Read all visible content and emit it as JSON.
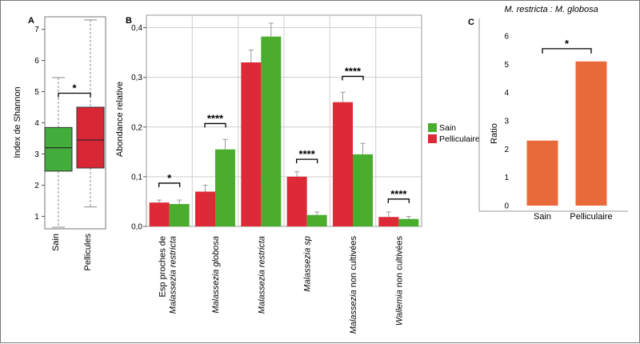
{
  "colors": {
    "sain_box": "#42ad3a",
    "pellicules_box": "#d92635",
    "sain_bar": "#4aad2e",
    "pelliculaire_bar": "#dd2a36",
    "ratio_bar": "#e8693a",
    "grid": "#cfcfcf",
    "whisker": "#888888"
  },
  "chart_data": [
    {
      "panel": "A",
      "type": "box",
      "ylabel": "Index de Shannon",
      "ylim": [
        0.6,
        7.4
      ],
      "yticks": [
        "1",
        "2",
        "3",
        "4",
        "5",
        "6",
        "7"
      ],
      "categories": [
        "Sain",
        "Pellicules"
      ],
      "boxes": [
        {
          "name": "Sain",
          "min": 0.65,
          "q1": 2.45,
          "median": 3.2,
          "q3": 3.85,
          "max": 5.45
        },
        {
          "name": "Pellicules",
          "min": 1.3,
          "q1": 2.55,
          "median": 3.45,
          "q3": 4.5,
          "max": 7.3
        }
      ],
      "significance": [
        {
          "between": [
            "Sain",
            "Pellicules"
          ],
          "label": "*",
          "y": 4.95
        }
      ]
    },
    {
      "panel": "B",
      "type": "bar",
      "ylabel": "Abondance relative",
      "ylim": [
        0,
        0.425
      ],
      "yticks": [
        "0,0",
        "0,1",
        "0,2",
        "0,3",
        "0,4"
      ],
      "categories": [
        {
          "line1_italic": "",
          "line1_plain": "Esp proches de",
          "line2_italic": "Malassezia restricta",
          "line2_plain": ""
        },
        {
          "line1_italic": "Malassezia globosa",
          "line1_plain": "",
          "line2_italic": "",
          "line2_plain": ""
        },
        {
          "line1_italic": "Malassezia restricta",
          "line1_plain": "",
          "line2_italic": "",
          "line2_plain": ""
        },
        {
          "line1_italic": "Malassezia sp",
          "line1_plain": "",
          "line2_italic": "",
          "line2_plain": ""
        },
        {
          "line1_italic": "Malassezia",
          "line1_plain": " non cultivées",
          "line2_italic": "",
          "line2_plain": ""
        },
        {
          "line1_italic": "Wallemia",
          "line1_plain": " non cultivées",
          "line2_italic": "",
          "line2_plain": ""
        }
      ],
      "series": [
        {
          "name": "Pelliculaire",
          "values": [
            0.048,
            0.07,
            0.33,
            0.1,
            0.25,
            0.019
          ],
          "errors": [
            0.005,
            0.013,
            0.025,
            0.01,
            0.02,
            0.01
          ]
        },
        {
          "name": "Sain",
          "values": [
            0.045,
            0.155,
            0.382,
            0.023,
            0.145,
            0.015
          ],
          "errors": [
            0.008,
            0.02,
            0.027,
            0.006,
            0.022,
            0.005
          ]
        }
      ],
      "legend_order": [
        "Sain",
        "Pelliculaire"
      ],
      "legend_position": "right",
      "significance": [
        {
          "category": 0,
          "label": "*",
          "y": 0.087
        },
        {
          "category": 1,
          "label": "****",
          "y": 0.207
        },
        {
          "category": 3,
          "label": "****",
          "y": 0.135
        },
        {
          "category": 4,
          "label": "****",
          "y": 0.302
        },
        {
          "category": 5,
          "label": "****",
          "y": 0.055
        }
      ],
      "grid": true
    },
    {
      "panel": "C",
      "type": "bar",
      "title": "M. restricta : M. globosa",
      "ylabel": "Ratio",
      "ylim": [
        0,
        6
      ],
      "yticks": [
        "0",
        "1",
        "2",
        "3",
        "4",
        "5",
        "6"
      ],
      "categories": [
        "Sain",
        "Pelliculaire"
      ],
      "values": [
        2.3,
        5.1
      ],
      "significance": [
        {
          "between": [
            "Sain",
            "Pelliculaire"
          ],
          "label": "*",
          "y": 5.55
        }
      ]
    }
  ]
}
